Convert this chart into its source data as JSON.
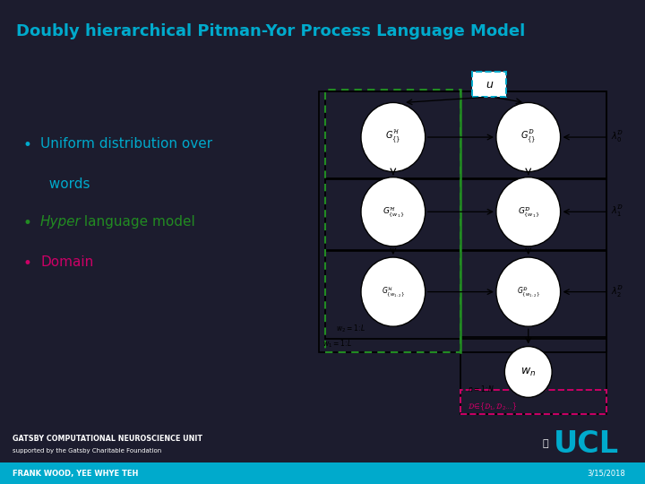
{
  "title": "Doubly hierarchical Pitman-Yor Process Language Model",
  "title_color": "#00aacc",
  "title_bg": "#1c1c2e",
  "bg_color": "#1c1c2e",
  "bullet1a": "Uniform distribution over",
  "bullet1b": "  words",
  "bullet2_italic": "Hyper",
  "bullet2_rest": " language model",
  "bullet3": "Domain",
  "bullet_color1": "#00aacc",
  "bullet_color2": "#228B22",
  "bullet_color3": "#cc0066",
  "footer_text1": "GATSBY COMPUTATIONAL NEUROSCIENCE UNIT",
  "footer_text2": "supported by the Gatsby Charitable Foundation",
  "footer_text3": "FRANK WOOD, YEE WHYE TEH",
  "footer_text4": "3/15/2018",
  "footer_color": "#ffffff",
  "panel_border": "#00aacc",
  "green_border": "#228B22",
  "magenta_border": "#cc0066",
  "cyan_border": "#00aacc"
}
